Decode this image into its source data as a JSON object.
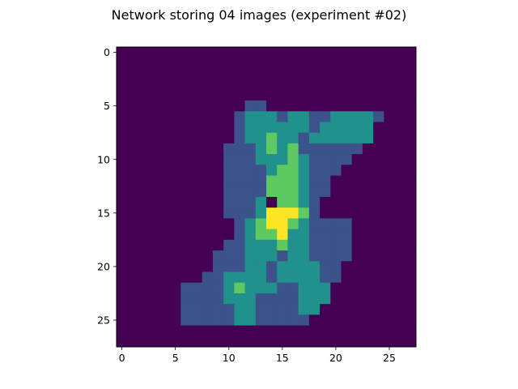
{
  "chart_data": {
    "type": "heatmap",
    "title": "Network storing 04 images (experiment #02)",
    "colormap": "viridis",
    "value_range": [
      0,
      1
    ],
    "x_ticks": [
      0,
      5,
      10,
      15,
      20,
      25
    ],
    "y_ticks": [
      0,
      5,
      10,
      15,
      20,
      25
    ],
    "xlim": [
      -0.5,
      27.5
    ],
    "ylim": [
      27.5,
      -0.5
    ],
    "grid": false,
    "legend": "none",
    "rows": 28,
    "cols": 28,
    "matrix": [
      [
        0,
        0,
        0,
        0,
        0,
        0,
        0,
        0,
        0,
        0,
        0,
        0,
        0,
        0,
        0,
        0,
        0,
        0,
        0,
        0,
        0,
        0,
        0,
        0,
        0,
        0,
        0,
        0
      ],
      [
        0,
        0,
        0,
        0,
        0,
        0,
        0,
        0,
        0,
        0,
        0,
        0,
        0,
        0,
        0,
        0,
        0,
        0,
        0,
        0,
        0,
        0,
        0,
        0,
        0,
        0,
        0,
        0
      ],
      [
        0,
        0,
        0,
        0,
        0,
        0,
        0,
        0,
        0,
        0,
        0,
        0,
        0,
        0,
        0,
        0,
        0,
        0,
        0,
        0,
        0,
        0,
        0,
        0,
        0,
        0,
        0,
        0
      ],
      [
        0,
        0,
        0,
        0,
        0,
        0,
        0,
        0,
        0,
        0,
        0,
        0,
        0,
        0,
        0,
        0,
        0,
        0,
        0,
        0,
        0,
        0,
        0,
        0,
        0,
        0,
        0,
        0
      ],
      [
        0,
        0,
        0,
        0,
        0,
        0,
        0,
        0,
        0,
        0,
        0,
        0,
        0,
        0,
        0,
        0,
        0,
        0,
        0,
        0,
        0,
        0,
        0,
        0,
        0,
        0,
        0,
        0
      ],
      [
        0,
        0,
        0,
        0,
        0,
        0,
        0,
        0,
        0,
        0,
        0,
        0,
        0.25,
        0.25,
        0,
        0,
        0,
        0,
        0,
        0,
        0,
        0,
        0,
        0,
        0,
        0,
        0,
        0
      ],
      [
        0,
        0,
        0,
        0,
        0,
        0,
        0,
        0,
        0,
        0,
        0,
        0.25,
        0.5,
        0.5,
        0.5,
        0.25,
        0.5,
        0.5,
        0.25,
        0.25,
        0.5,
        0.5,
        0.5,
        0.5,
        0.25,
        0,
        0,
        0
      ],
      [
        0,
        0,
        0,
        0,
        0,
        0,
        0,
        0,
        0,
        0,
        0,
        0.25,
        0.5,
        0.5,
        0.5,
        0.5,
        0.5,
        0.5,
        0.25,
        0.5,
        0.5,
        0.5,
        0.5,
        0.5,
        0,
        0,
        0,
        0
      ],
      [
        0,
        0,
        0,
        0,
        0,
        0,
        0,
        0,
        0,
        0,
        0,
        0.25,
        0.5,
        0.5,
        0.75,
        0.5,
        0.5,
        0.25,
        0.5,
        0.5,
        0.5,
        0.5,
        0.5,
        0.5,
        0,
        0,
        0,
        0
      ],
      [
        0,
        0,
        0,
        0,
        0,
        0,
        0,
        0,
        0,
        0,
        0.25,
        0.25,
        0.25,
        0.5,
        0.75,
        0.5,
        0.75,
        0.25,
        0.25,
        0.25,
        0.25,
        0.25,
        0.25,
        0,
        0,
        0,
        0,
        0
      ],
      [
        0,
        0,
        0,
        0,
        0,
        0,
        0,
        0,
        0,
        0,
        0.25,
        0.25,
        0.25,
        0.5,
        0.5,
        0.5,
        0.75,
        0.5,
        0.25,
        0.25,
        0.25,
        0.25,
        0,
        0,
        0,
        0,
        0,
        0
      ],
      [
        0,
        0,
        0,
        0,
        0,
        0,
        0,
        0,
        0,
        0,
        0.25,
        0.25,
        0.25,
        0.25,
        0.5,
        0.75,
        0.75,
        0.5,
        0.25,
        0.25,
        0.25,
        0,
        0,
        0,
        0,
        0,
        0,
        0
      ],
      [
        0,
        0,
        0,
        0,
        0,
        0,
        0,
        0,
        0,
        0,
        0.25,
        0.25,
        0.25,
        0.25,
        0.75,
        0.75,
        0.75,
        0.5,
        0.25,
        0.25,
        0,
        0,
        0,
        0,
        0,
        0,
        0,
        0
      ],
      [
        0,
        0,
        0,
        0,
        0,
        0,
        0,
        0,
        0,
        0,
        0.25,
        0.25,
        0.25,
        0.25,
        0.75,
        0.75,
        0.75,
        0.5,
        0.25,
        0.25,
        0,
        0,
        0,
        0,
        0,
        0,
        0,
        0
      ],
      [
        0,
        0,
        0,
        0,
        0,
        0,
        0,
        0,
        0,
        0,
        0.25,
        0.25,
        0.25,
        0.5,
        0,
        0.75,
        0.75,
        0.5,
        0.25,
        0,
        0,
        0,
        0,
        0,
        0,
        0,
        0,
        0
      ],
      [
        0,
        0,
        0,
        0,
        0,
        0,
        0,
        0,
        0,
        0,
        0.25,
        0.25,
        0.25,
        0.5,
        1,
        1,
        1,
        0.75,
        0.25,
        0,
        0,
        0,
        0,
        0,
        0,
        0,
        0,
        0
      ],
      [
        0,
        0,
        0,
        0,
        0,
        0,
        0,
        0,
        0,
        0,
        0,
        0.25,
        0.5,
        0.75,
        1,
        1,
        0.75,
        0.5,
        0.25,
        0.25,
        0.25,
        0.25,
        0,
        0,
        0,
        0,
        0,
        0
      ],
      [
        0,
        0,
        0,
        0,
        0,
        0,
        0,
        0,
        0,
        0,
        0,
        0.25,
        0.5,
        0.75,
        0.75,
        1,
        0.5,
        0.5,
        0.25,
        0.25,
        0.25,
        0.25,
        0,
        0,
        0,
        0,
        0,
        0
      ],
      [
        0,
        0,
        0,
        0,
        0,
        0,
        0,
        0,
        0,
        0,
        0.25,
        0.25,
        0.5,
        0.5,
        0.5,
        0.75,
        0.5,
        0.5,
        0.25,
        0.25,
        0.25,
        0.25,
        0,
        0,
        0,
        0,
        0,
        0
      ],
      [
        0,
        0,
        0,
        0,
        0,
        0,
        0,
        0,
        0,
        0.25,
        0.25,
        0.25,
        0.5,
        0.5,
        0.5,
        0.25,
        0.5,
        0.5,
        0.25,
        0.25,
        0.25,
        0.25,
        0,
        0,
        0,
        0,
        0,
        0
      ],
      [
        0,
        0,
        0,
        0,
        0,
        0,
        0,
        0,
        0,
        0.25,
        0.25,
        0.25,
        0.5,
        0.5,
        0.25,
        0.5,
        0.5,
        0.5,
        0.5,
        0.25,
        0.25,
        0,
        0,
        0,
        0,
        0,
        0,
        0
      ],
      [
        0,
        0,
        0,
        0,
        0,
        0,
        0,
        0,
        0.25,
        0.25,
        0.5,
        0.5,
        0.5,
        0.5,
        0.25,
        0.5,
        0.5,
        0.5,
        0.5,
        0.25,
        0.25,
        0,
        0,
        0,
        0,
        0,
        0,
        0
      ],
      [
        0,
        0,
        0,
        0,
        0,
        0,
        0.25,
        0.25,
        0.25,
        0.25,
        0.5,
        0.75,
        0.5,
        0.5,
        0.5,
        0.25,
        0.25,
        0.5,
        0.5,
        0.5,
        0,
        0,
        0,
        0,
        0,
        0,
        0,
        0
      ],
      [
        0,
        0,
        0,
        0,
        0,
        0,
        0.25,
        0.25,
        0.25,
        0.25,
        0.5,
        0.5,
        0.5,
        0.25,
        0.25,
        0.25,
        0.25,
        0.5,
        0.5,
        0.5,
        0,
        0,
        0,
        0,
        0,
        0,
        0,
        0
      ],
      [
        0,
        0,
        0,
        0,
        0,
        0,
        0.25,
        0.25,
        0.25,
        0.25,
        0.25,
        0.5,
        0.5,
        0.25,
        0.25,
        0.25,
        0.25,
        0.5,
        0.5,
        0,
        0,
        0,
        0,
        0,
        0,
        0,
        0,
        0
      ],
      [
        0,
        0,
        0,
        0,
        0,
        0,
        0.25,
        0.25,
        0.25,
        0.25,
        0.25,
        0.5,
        0.5,
        0.25,
        0.25,
        0.25,
        0.25,
        0.25,
        0,
        0,
        0,
        0,
        0,
        0,
        0,
        0,
        0,
        0
      ],
      [
        0,
        0,
        0,
        0,
        0,
        0,
        0,
        0,
        0,
        0,
        0,
        0,
        0,
        0,
        0,
        0,
        0,
        0,
        0,
        0,
        0,
        0,
        0,
        0,
        0,
        0,
        0,
        0
      ],
      [
        0,
        0,
        0,
        0,
        0,
        0,
        0,
        0,
        0,
        0,
        0,
        0,
        0,
        0,
        0,
        0,
        0,
        0,
        0,
        0,
        0,
        0,
        0,
        0,
        0,
        0,
        0,
        0
      ]
    ]
  }
}
